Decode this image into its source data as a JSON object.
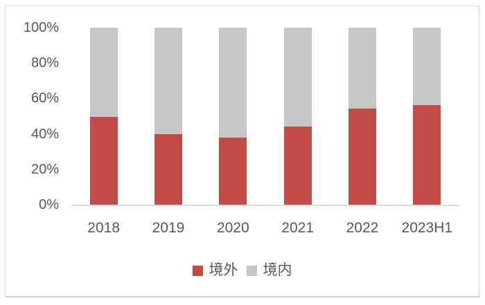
{
  "chart_data": {
    "type": "bar",
    "variant": "stacked-100",
    "title": "",
    "xlabel": "",
    "ylabel": "",
    "categories": [
      "2018",
      "2019",
      "2020",
      "2021",
      "2022",
      "2023H1"
    ],
    "series": [
      {
        "name": "境外",
        "color": "#c24c48",
        "values": [
          50,
          40,
          38,
          44.4,
          54.3,
          56.4
        ]
      },
      {
        "name": "境内",
        "color": "#c6c6c6",
        "values": [
          50,
          60,
          62,
          55.6,
          45.7,
          43.6
        ]
      }
    ],
    "ylim": [
      0,
      100
    ],
    "yticks": [
      "0%",
      "20%",
      "40%",
      "60%",
      "80%",
      "100%"
    ],
    "grid": "off",
    "legend_position": "bottom"
  },
  "colors": {
    "text": "#595959",
    "axis_line": "#d9d9d9",
    "card_border": "#d9d9d9",
    "background": "#ffffff"
  }
}
